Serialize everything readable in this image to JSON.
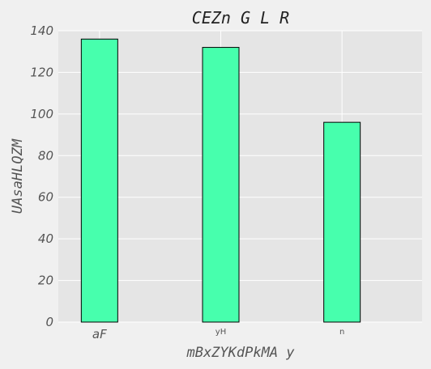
{
  "colors": {
    "figure_background": "#f0f0f0",
    "plot_background": "#e5e5e5",
    "grid": "#ffffff",
    "bar_fill": "#47ffad",
    "bar_edge": "#000000",
    "text": "#555555"
  },
  "chart_data": {
    "type": "bar",
    "title": "CEZn G  L R",
    "xlabel": "mBxZYKdPkMA y",
    "ylabel": "UAsaHLQZM",
    "categories": [
      "aF",
      "yH",
      "n"
    ],
    "values": [
      136,
      132,
      96
    ],
    "ylim": [
      0,
      140
    ],
    "yticks": [
      0,
      20,
      40,
      60,
      80,
      100,
      120,
      140
    ],
    "grid": true
  }
}
